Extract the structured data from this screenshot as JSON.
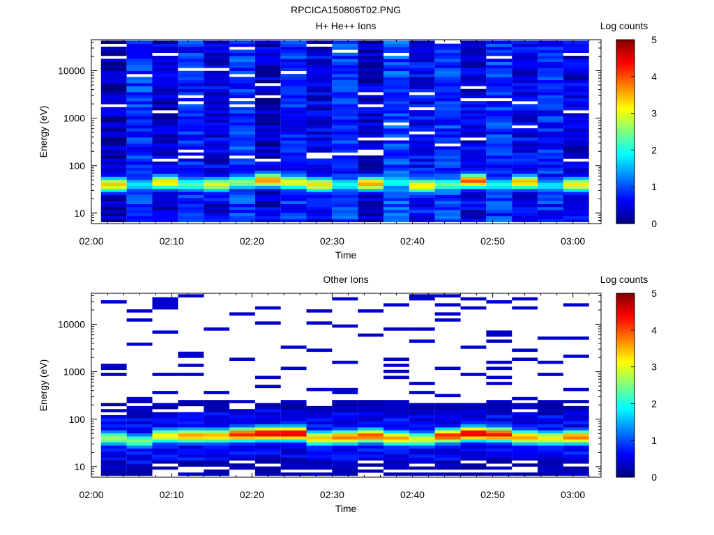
{
  "figure_title": "RPCICA150806T02.PNG",
  "chart_data": [
    {
      "type": "heatmap",
      "title": "H+ He++ Ions",
      "xlabel": "Time",
      "ylabel": "Energy (eV)",
      "colorbar_label": "Log counts",
      "colorbar_ticks": [
        "0",
        "1",
        "2",
        "3",
        "4",
        "5"
      ],
      "clim": [
        0,
        5
      ],
      "y_scale": "log",
      "ylim": [
        6,
        45000
      ],
      "y_ticks": [
        "10",
        "100",
        "1000",
        "10000"
      ],
      "y_tick_values": [
        10,
        100,
        1000,
        10000
      ],
      "x_range": [
        "02:00",
        "03:03"
      ],
      "x_ticks": [
        "02:00",
        "02:10",
        "02:20",
        "02:30",
        "02:40",
        "02:50",
        "03:00"
      ],
      "time_bins_start_min": [
        1.2,
        4.4,
        7.6,
        10.8,
        14.0,
        17.2,
        20.4,
        23.6,
        26.8,
        30.0,
        33.2,
        36.4,
        39.6,
        42.8,
        46.0,
        49.2,
        52.4,
        55.6,
        58.8
      ],
      "time_bin_width_min": 3.2,
      "background_level": [
        0.3,
        0.9,
        0.4,
        0.8,
        0.5,
        0.9,
        0.4,
        0.8,
        0.5,
        0.9,
        0.4,
        1.0,
        0.6,
        0.9,
        0.5,
        0.9,
        0.6,
        0.8,
        0.5
      ],
      "peak_level": [
        3.4,
        1.8,
        3.3,
        2.3,
        3.0,
        2.6,
        3.7,
        3.1,
        3.3,
        2.0,
        3.6,
        2.0,
        3.3,
        2.4,
        4.0,
        2.0,
        3.5,
        1.8,
        3.2
      ],
      "peak_energy_eV": [
        40,
        40,
        45,
        40,
        40,
        45,
        50,
        45,
        40,
        40,
        42,
        45,
        38,
        40,
        48,
        40,
        45,
        38,
        40
      ],
      "sparse": false
    },
    {
      "type": "heatmap",
      "title": "Other Ions",
      "xlabel": "Time",
      "ylabel": "Energy (eV)",
      "colorbar_label": "Log counts",
      "colorbar_ticks": [
        "0",
        "1",
        "2",
        "3",
        "4",
        "5"
      ],
      "clim": [
        0,
        5
      ],
      "y_scale": "log",
      "ylim": [
        6,
        45000
      ],
      "y_ticks": [
        "10",
        "100",
        "1000",
        "10000"
      ],
      "y_tick_values": [
        10,
        100,
        1000,
        10000
      ],
      "x_range": [
        "02:00",
        "03:03"
      ],
      "x_ticks": [
        "02:00",
        "02:10",
        "02:20",
        "02:30",
        "02:40",
        "02:50",
        "03:00"
      ],
      "time_bins_start_min": [
        1.2,
        4.4,
        7.6,
        10.8,
        14.0,
        17.2,
        20.4,
        23.6,
        26.8,
        30.0,
        33.2,
        36.4,
        39.6,
        42.8,
        46.0,
        49.2,
        52.4,
        55.6,
        58.8
      ],
      "time_bin_width_min": 3.2,
      "background_level": [
        0.2,
        0.4,
        0.2,
        0.4,
        0.2,
        0.4,
        0.2,
        0.4,
        0.2,
        0.4,
        0.2,
        0.4,
        0.2,
        0.4,
        0.2,
        0.4,
        0.2,
        0.4,
        0.2
      ],
      "peak_level": [
        2.7,
        2.5,
        3.2,
        3.6,
        3.5,
        4.2,
        4.5,
        4.6,
        3.4,
        3.8,
        4.0,
        3.6,
        3.0,
        4.2,
        4.6,
        4.3,
        3.6,
        3.2,
        3.8
      ],
      "peak_energy_eV": [
        40,
        35,
        45,
        45,
        45,
        48,
        50,
        50,
        40,
        42,
        45,
        40,
        38,
        45,
        50,
        48,
        42,
        40,
        42
      ],
      "sparse": true
    }
  ],
  "colormap": [
    "#00007f",
    "#0000ff",
    "#007fff",
    "#00ffff",
    "#7fff7f",
    "#ffff00",
    "#ff7f00",
    "#ff0000",
    "#7f0000"
  ]
}
